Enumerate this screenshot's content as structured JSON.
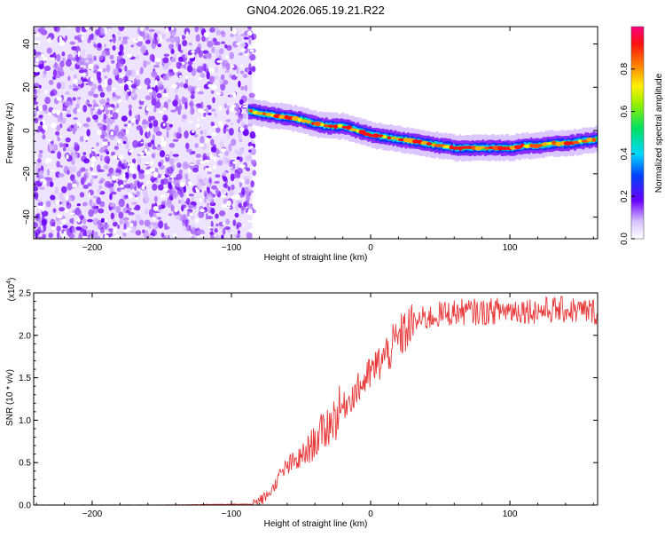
{
  "title": "GN04.2026.065.19.21.R22",
  "chart_data": [
    {
      "type": "heatmap",
      "xlabel": "Height of straight line (km)",
      "ylabel": "Frequency (Hz)",
      "xlim": [
        -242,
        163
      ],
      "ylim": [
        -50,
        48
      ],
      "xticks": [
        -200,
        -100,
        0,
        100
      ],
      "yticks": [
        -40,
        -20,
        0,
        20,
        40
      ],
      "noise_region_x": [
        -242,
        -85
      ],
      "ridge": {
        "x": [
          -88,
          -80,
          -70,
          -60,
          -50,
          -40,
          -30,
          -20,
          -10,
          0,
          10,
          20,
          30,
          40,
          50,
          60,
          70,
          80,
          90,
          100,
          110,
          120,
          130,
          140,
          150,
          163
        ],
        "y": [
          9,
          8,
          7,
          6,
          5,
          3,
          2,
          2,
          0,
          -2,
          -3,
          -4,
          -5,
          -6,
          -7,
          -8,
          -8,
          -8,
          -8,
          -8,
          -7,
          -7,
          -6,
          -6,
          -5,
          -4
        ]
      },
      "colorbar": {
        "label": "Normalized spectral amplitude",
        "ticks": [
          0.0,
          0.2,
          0.4,
          0.6,
          0.8
        ],
        "tick_labels": [
          "0.0",
          "0.2",
          "0.4",
          "0.6",
          "0.8"
        ],
        "range": [
          0,
          1
        ]
      }
    },
    {
      "type": "line",
      "xlabel": "Height of straight line (km)",
      "ylabel": "SNR (10 * v/v)",
      "multiplier": "(x10",
      "multiplier_exp": "4",
      "multiplier_close": ")",
      "xlim": [
        -242,
        163
      ],
      "ylim": [
        0,
        2.5
      ],
      "xticks": [
        -200,
        -100,
        0,
        100
      ],
      "yticks": [
        0.0,
        0.5,
        1.0,
        1.5,
        2.0,
        2.5
      ],
      "ytick_labels": [
        "0.0",
        "0.5",
        "1.0",
        "1.5",
        "2.0",
        "2.5"
      ],
      "color": "#e8393a",
      "series": {
        "name": "SNR",
        "x": [
          -242,
          -200,
          -150,
          -100,
          -85,
          -80,
          -75,
          -70,
          -65,
          -60,
          -55,
          -50,
          -45,
          -40,
          -35,
          -30,
          -25,
          -20,
          -15,
          -10,
          -5,
          0,
          5,
          10,
          15,
          20,
          25,
          30,
          35,
          40,
          45,
          50,
          60,
          70,
          80,
          90,
          100,
          110,
          120,
          130,
          140,
          150,
          163
        ],
        "y": [
          0.0,
          0.0,
          0.0,
          0.01,
          0.01,
          0.05,
          0.1,
          0.2,
          0.35,
          0.45,
          0.5,
          0.55,
          0.65,
          0.75,
          0.85,
          0.95,
          1.05,
          1.15,
          1.25,
          1.35,
          1.45,
          1.55,
          1.65,
          1.75,
          1.85,
          1.95,
          2.05,
          2.12,
          2.18,
          2.2,
          2.22,
          2.25,
          2.27,
          2.28,
          2.27,
          2.29,
          2.3,
          2.3,
          2.29,
          2.3,
          2.3,
          2.29,
          2.28
        ]
      }
    }
  ]
}
